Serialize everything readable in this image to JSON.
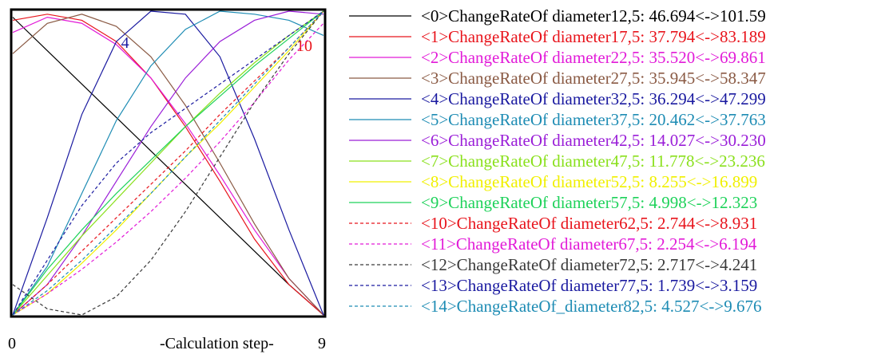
{
  "chart_data": {
    "type": "line",
    "x": [
      0,
      1,
      2,
      3,
      4,
      5,
      6,
      7,
      8,
      9
    ],
    "xlabel": "-Calculation step-",
    "x_tick_labels": [
      "0",
      "9"
    ],
    "ylim": [
      0,
      1
    ],
    "normalized_per_series": true,
    "grid": false,
    "legend_placement": "right",
    "curve_markers": [
      {
        "text": "4",
        "series_index": 4,
        "at_x": 3
      },
      {
        "text": "10",
        "series_index": 10,
        "at_x": 9
      }
    ],
    "series": [
      {
        "name": "<0>ChangeRateOf diameter12,5: 46.694<->101.59",
        "color": "#000000",
        "dashed": false,
        "values": [
          0.98,
          0.87,
          0.76,
          0.65,
          0.54,
          0.43,
          0.32,
          0.21,
          0.1,
          0.0
        ]
      },
      {
        "name": "<1>ChangeRateOf diameter17,5: 37.794<->83.189",
        "color": "#e8141c",
        "dashed": false,
        "values": [
          0.97,
          0.99,
          0.97,
          0.9,
          0.78,
          0.62,
          0.44,
          0.25,
          0.1,
          0.0
        ]
      },
      {
        "name": "<2>ChangeRateOf diameter22,5: 35.520<->69.861",
        "color": "#e21bd8",
        "dashed": false,
        "values": [
          0.93,
          0.98,
          0.96,
          0.89,
          0.78,
          0.63,
          0.46,
          0.28,
          0.12,
          0.0
        ]
      },
      {
        "name": "<3>ChangeRateOf diameter27,5: 35.945<->58.347",
        "color": "#8a5a44",
        "dashed": false,
        "values": [
          0.86,
          0.96,
          0.99,
          0.95,
          0.85,
          0.69,
          0.5,
          0.3,
          0.12,
          0.0
        ]
      },
      {
        "name": "<4>ChangeRateOf diameter32,5: 36.294<->47.299",
        "color": "#1a1aa0",
        "dashed": false,
        "values": [
          0.0,
          0.32,
          0.66,
          0.9,
          1.0,
          0.99,
          0.85,
          0.58,
          0.28,
          0.0
        ]
      },
      {
        "name": "<5>ChangeRateOf diameter37,5: 20.462<->37.763",
        "color": "#1e8cb4",
        "dashed": false,
        "values": [
          0.0,
          0.16,
          0.4,
          0.64,
          0.82,
          0.94,
          1.0,
          0.99,
          0.97,
          0.92
        ]
      },
      {
        "name": "<6>ChangeRateOf diameter42,5: 14.027<->30.230",
        "color": "#9a1ed8",
        "dashed": false,
        "values": [
          0.0,
          0.1,
          0.26,
          0.44,
          0.62,
          0.78,
          0.9,
          0.97,
          1.0,
          0.99
        ]
      },
      {
        "name": "<7>ChangeRateOf diameter47,5: 11.778<->23.236",
        "color": "#8ae01c",
        "dashed": false,
        "values": [
          0.0,
          0.13,
          0.26,
          0.38,
          0.5,
          0.62,
          0.73,
          0.83,
          0.92,
          1.0
        ]
      },
      {
        "name": "<8>ChangeRateOf diameter52,5: 8.255<->16.899",
        "color": "#f0f000",
        "dashed": false,
        "values": [
          0.0,
          0.07,
          0.17,
          0.28,
          0.4,
          0.52,
          0.63,
          0.75,
          0.87,
          1.0
        ]
      },
      {
        "name": "<9>ChangeRateOf diameter57,5: 4.998<->12.323",
        "color": "#1ed25a",
        "dashed": false,
        "values": [
          0.0,
          0.15,
          0.28,
          0.4,
          0.51,
          0.62,
          0.72,
          0.82,
          0.91,
          1.0
        ]
      },
      {
        "name": "<10>ChangeRateOf diameter62,5: 2.744<->8.931",
        "color": "#e8141c",
        "dashed": true,
        "values": [
          0.0,
          0.1,
          0.21,
          0.32,
          0.43,
          0.54,
          0.66,
          0.77,
          0.88,
          1.0
        ]
      },
      {
        "name": "<11>ChangeRateOf diameter67,5: 2.254<->6.194",
        "color": "#e21bd8",
        "dashed": true,
        "values": [
          0.0,
          0.07,
          0.15,
          0.24,
          0.34,
          0.45,
          0.57,
          0.7,
          0.84,
          0.96
        ]
      },
      {
        "name": "<12>ChangeRateOf diameter72,5: 2.717<->4.241",
        "color": "#3a3a3a",
        "dashed": true,
        "values": [
          0.1,
          0.02,
          0.0,
          0.06,
          0.18,
          0.34,
          0.52,
          0.7,
          0.86,
          1.0
        ]
      },
      {
        "name": "<13>ChangeRateOf diameter77,5: 1.739<->3.159",
        "color": "#1a1aa0",
        "dashed": true,
        "values": [
          0.0,
          0.18,
          0.36,
          0.5,
          0.6,
          0.68,
          0.76,
          0.84,
          0.92,
          1.0
        ]
      },
      {
        "name": "<14>ChangeRateOf_diameter82,5: 4.527<->9.676",
        "color": "#1e8cb4",
        "dashed": true,
        "values": [
          0.0,
          0.08,
          0.18,
          0.29,
          0.4,
          0.52,
          0.64,
          0.76,
          0.88,
          1.0
        ]
      }
    ]
  }
}
